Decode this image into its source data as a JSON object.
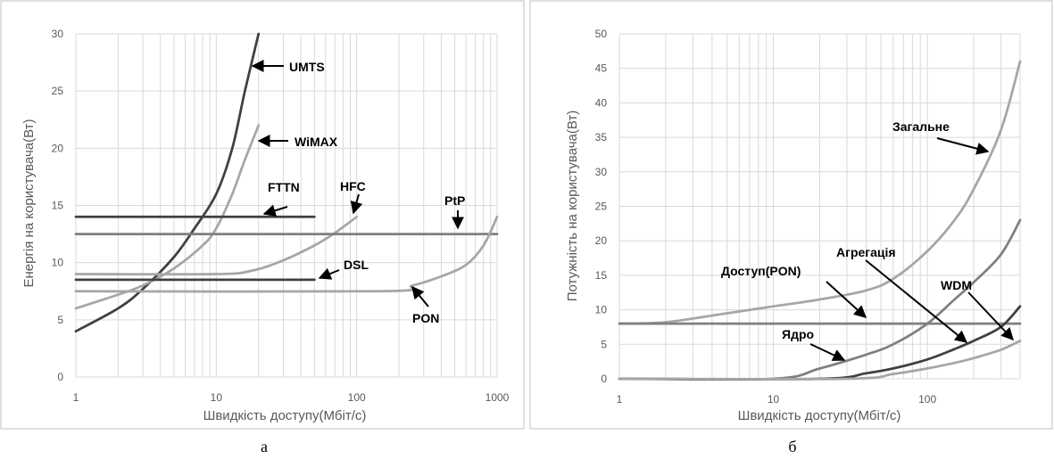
{
  "colors": {
    "dark": "#404040",
    "mid": "#7f7f7f",
    "light": "#a6a6a6",
    "grid": "#d9d9d9"
  },
  "chart_data": [
    {
      "type": "line",
      "caption": "а",
      "xscale": "log",
      "xlim": [
        1,
        1000
      ],
      "ylim": [
        0,
        30
      ],
      "xticks": [
        "1",
        "10",
        "100",
        "1000"
      ],
      "yticks": [
        "0",
        "5",
        "10",
        "15",
        "20",
        "25",
        "30"
      ],
      "xlabel": "Швидкість доступу(Мбіт/с)",
      "ylabel": "Енергія на користувача(Вт)",
      "grid": true,
      "series": [
        {
          "name": "UMTS",
          "color": "dark",
          "points": [
            [
              1,
              4
            ],
            [
              2,
              6
            ],
            [
              3,
              7.7
            ],
            [
              5,
              10.5
            ],
            [
              7,
              13
            ],
            [
              10,
              16
            ],
            [
              13,
              20
            ],
            [
              16,
              25
            ],
            [
              20,
              30
            ]
          ]
        },
        {
          "name": "WiMAX",
          "color": "light",
          "points": [
            [
              1,
              6
            ],
            [
              2,
              7.2
            ],
            [
              3,
              8
            ],
            [
              5,
              9.5
            ],
            [
              8,
              11.5
            ],
            [
              10,
              13
            ],
            [
              13,
              16
            ],
            [
              16,
              19
            ],
            [
              20,
              22
            ]
          ]
        },
        {
          "name": "FTTN",
          "color": "dark",
          "points": [
            [
              1,
              14
            ],
            [
              50,
              14
            ]
          ]
        },
        {
          "name": "HFC",
          "color": "light",
          "points": [
            [
              1,
              9
            ],
            [
              10,
              9
            ],
            [
              18,
              9.3
            ],
            [
              30,
              10.2
            ],
            [
              50,
              11.5
            ],
            [
              70,
              12.6
            ],
            [
              100,
              14
            ]
          ]
        },
        {
          "name": "PtP",
          "color": "mid",
          "points": [
            [
              1,
              12.5
            ],
            [
              1000,
              12.5
            ]
          ]
        },
        {
          "name": "DSL",
          "color": "dark",
          "points": [
            [
              1,
              8.5
            ],
            [
              50,
              8.5
            ]
          ]
        },
        {
          "name": "PON",
          "color": "light",
          "points": [
            [
              1,
              7.5
            ],
            [
              150,
              7.5
            ],
            [
              250,
              8
            ],
            [
              400,
              8.8
            ],
            [
              600,
              9.8
            ],
            [
              800,
              11.5
            ],
            [
              1000,
              14
            ]
          ]
        }
      ],
      "annotations": [
        {
          "text": "UMTS",
          "at": [
            19,
            27.5
          ]
        },
        {
          "text": "WiMAX",
          "at": [
            19,
            20.5
          ]
        },
        {
          "text": "FTTN",
          "at": [
            22,
            14.2
          ]
        },
        {
          "text": "HFC",
          "at": [
            98,
            14.5
          ]
        },
        {
          "text": "PtP",
          "at": [
            490,
            12.8
          ]
        },
        {
          "text": "DSL",
          "at": [
            62,
            8.7
          ]
        },
        {
          "text": "PON",
          "at": [
            225,
            7.9
          ]
        }
      ]
    },
    {
      "type": "line",
      "caption": "б",
      "xscale": "log",
      "xlim": [
        1,
        400
      ],
      "ylim": [
        0,
        50
      ],
      "xticks": [
        "1",
        "10",
        "100"
      ],
      "yticks": [
        "0",
        "5",
        "10",
        "15",
        "20",
        "25",
        "30",
        "35",
        "40",
        "45",
        "50"
      ],
      "xlabel": "Швидкість доступу(Мбіт/с)",
      "ylabel": "Потужність на користувача(Вт)",
      "grid": true,
      "series": [
        {
          "name": "Загальне",
          "color": "light",
          "points": [
            [
              1,
              8
            ],
            [
              2,
              8.2
            ],
            [
              5,
              9.5
            ],
            [
              10,
              10.5
            ],
            [
              20,
              11.5
            ],
            [
              40,
              12.8
            ],
            [
              60,
              14.5
            ],
            [
              100,
              18.5
            ],
            [
              150,
              23
            ],
            [
              200,
              27.5
            ],
            [
              300,
              36
            ],
            [
              400,
              46
            ]
          ]
        },
        {
          "name": "Доступ(PON)",
          "color": "mid",
          "points": [
            [
              1,
              8
            ],
            [
              400,
              8
            ]
          ]
        },
        {
          "name": "Агрегація",
          "color": "mid",
          "points": [
            [
              1,
              0
            ],
            [
              10,
              0
            ],
            [
              20,
              1.5
            ],
            [
              40,
              3.5
            ],
            [
              60,
              5
            ],
            [
              100,
              8
            ],
            [
              150,
              11.5
            ],
            [
              200,
              14
            ],
            [
              300,
              18
            ],
            [
              400,
              23
            ]
          ]
        },
        {
          "name": "Ядро",
          "color": "dark",
          "points": [
            [
              1,
              0
            ],
            [
              20,
              0
            ],
            [
              40,
              0.8
            ],
            [
              60,
              1.5
            ],
            [
              100,
              2.8
            ],
            [
              150,
              4.3
            ],
            [
              200,
              5.5
            ],
            [
              300,
              7.5
            ],
            [
              400,
              10.5
            ]
          ]
        },
        {
          "name": "WDM",
          "color": "light",
          "points": [
            [
              1,
              0
            ],
            [
              30,
              0
            ],
            [
              60,
              0.7
            ],
            [
              100,
              1.5
            ],
            [
              150,
              2.3
            ],
            [
              200,
              3
            ],
            [
              300,
              4.2
            ],
            [
              400,
              5.5
            ]
          ]
        }
      ],
      "annotations": [
        {
          "text": "Загальне",
          "at": [
            280,
            33
          ]
        },
        {
          "text": "Доступ(PON)",
          "at": [
            40,
            8.3
          ]
        },
        {
          "text": "Агрегація",
          "at": [
            200,
            4.3
          ]
        },
        {
          "text": "Ядро",
          "at": [
            22,
            2.3
          ]
        },
        {
          "text": "WDM",
          "at": [
            390,
            5.5
          ]
        }
      ]
    }
  ]
}
